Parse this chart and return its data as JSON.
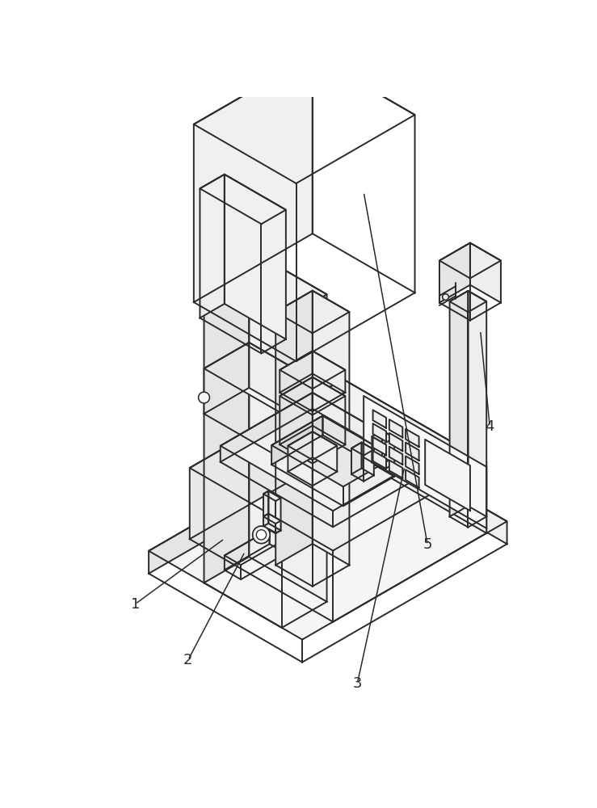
{
  "bg_color": "#ffffff",
  "line_color": "#2a2a2a",
  "line_width": 1.4,
  "label_color": "#2a2a2a",
  "label_fontsize": 13,
  "face_white": "#ffffff",
  "face_light": "#f0f0f0",
  "face_mid": "#e8e8e8",
  "figsize": [
    7.39,
    10.0
  ],
  "dpi": 100
}
